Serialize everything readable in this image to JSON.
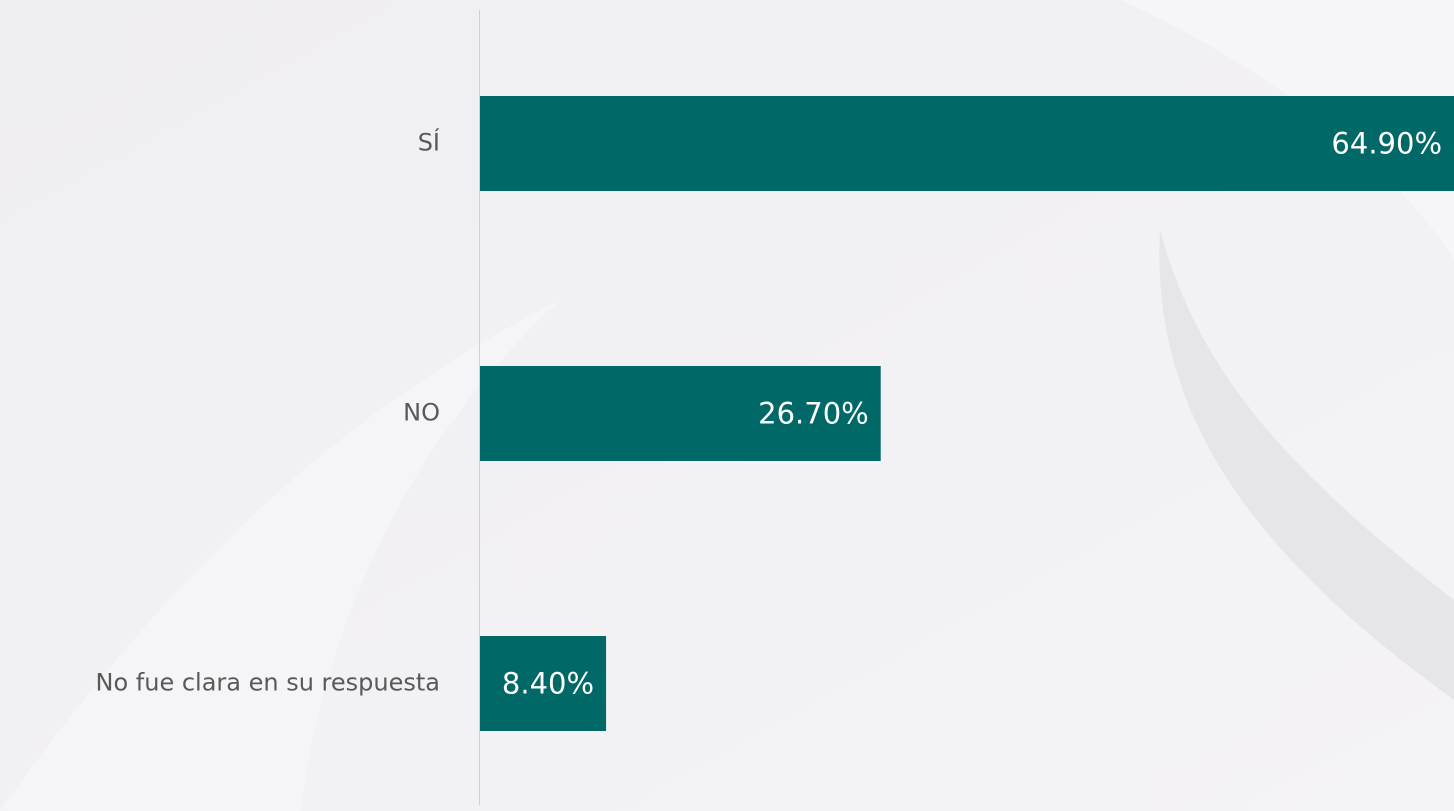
{
  "chart_data": {
    "type": "bar",
    "orientation": "horizontal",
    "categories": [
      "SÍ",
      "NO",
      "No fue clara en su respuesta"
    ],
    "values": [
      64.9,
      26.7,
      8.4
    ],
    "value_labels": [
      "64.90%",
      "26.70%",
      "8.40%"
    ],
    "color": "#006866"
  }
}
